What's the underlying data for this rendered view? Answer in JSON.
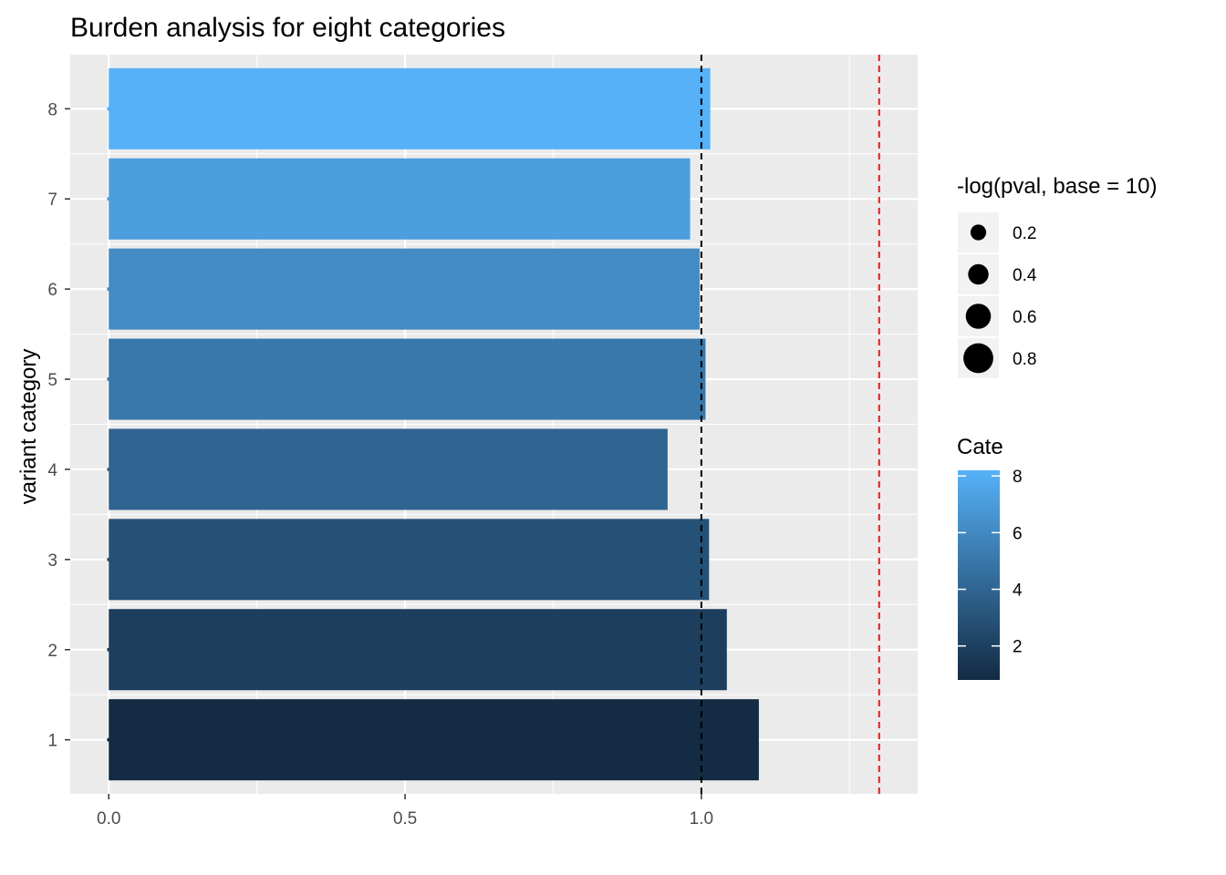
{
  "chart_data": {
    "type": "bar",
    "orientation": "horizontal",
    "title": "Burden analysis for eight categories",
    "ylabel": "variant category",
    "xlabel": "",
    "categories": [
      "1",
      "2",
      "3",
      "4",
      "5",
      "6",
      "7",
      "8"
    ],
    "values": [
      1.097,
      1.043,
      1.013,
      0.943,
      1.007,
      0.997,
      0.981,
      1.015
    ],
    "fill_scale_values": [
      1,
      2,
      3,
      4,
      5,
      6,
      7,
      8
    ],
    "point_sizes": [
      0.0,
      0.0,
      0.0,
      0.0,
      0.0,
      0.0,
      0.0,
      0.0
    ],
    "xlim": [
      -0.065,
      1.365
    ],
    "x_ticks": [
      0.0,
      0.5,
      1.0
    ],
    "x_tick_labels": [
      "0.0",
      "0.5",
      "1.0"
    ],
    "reference_lines": [
      {
        "x": 1.0,
        "color": "#000000",
        "style": "dashed"
      },
      {
        "x": 1.3,
        "color": "#e41a1c",
        "style": "dashed"
      }
    ],
    "grid": true,
    "legend_position": "right",
    "legends": {
      "size": {
        "title": "-log(pval, base = 10)",
        "labels": [
          "0.2",
          "0.4",
          "0.6",
          "0.8"
        ]
      },
      "fill": {
        "title": "Cate",
        "labels": [
          "2",
          "4",
          "6",
          "8"
        ],
        "range": [
          1,
          8
        ],
        "color_low": "#132b43",
        "color_high": "#56b1f7"
      }
    },
    "colors": {
      "panel_background": "#ebebeb",
      "grid": "#ffffff"
    }
  }
}
